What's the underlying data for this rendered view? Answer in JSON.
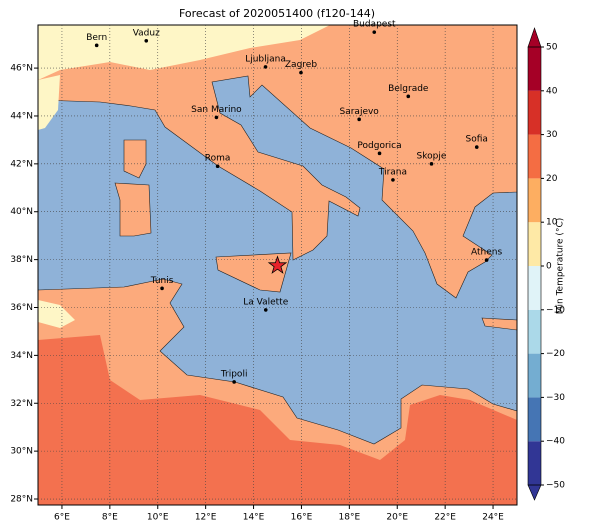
{
  "map": {
    "title": "Forecast of 2020051400 (f120-144)",
    "xlim": [
      5,
      25
    ],
    "ylim": [
      27.75,
      47.8
    ],
    "xticks": [
      {
        "value": 6,
        "label": "6°E"
      },
      {
        "value": 8,
        "label": "8°E"
      },
      {
        "value": 10,
        "label": "10°E"
      },
      {
        "value": 12,
        "label": "12°E"
      },
      {
        "value": 14,
        "label": "14°E"
      },
      {
        "value": 16,
        "label": "16°E"
      },
      {
        "value": 18,
        "label": "18°E"
      },
      {
        "value": 20,
        "label": "20°E"
      },
      {
        "value": 22,
        "label": "22°E"
      },
      {
        "value": 24,
        "label": "24°E"
      }
    ],
    "yticks": [
      {
        "value": 28,
        "label": "28°N"
      },
      {
        "value": 30,
        "label": "30°N"
      },
      {
        "value": 32,
        "label": "32°N"
      },
      {
        "value": 34,
        "label": "34°N"
      },
      {
        "value": 36,
        "label": "36°N"
      },
      {
        "value": 38,
        "label": "38°N"
      },
      {
        "value": 40,
        "label": "40°N"
      },
      {
        "value": 42,
        "label": "42°N"
      },
      {
        "value": 44,
        "label": "44°N"
      },
      {
        "value": 46,
        "label": "46°N"
      }
    ],
    "grid": true,
    "cities": [
      {
        "name": "Bern",
        "lon": 7.45,
        "lat": 46.95
      },
      {
        "name": "Vaduz",
        "lon": 9.52,
        "lat": 47.14
      },
      {
        "name": "Budapest",
        "lon": 19.04,
        "lat": 47.5
      },
      {
        "name": "Ljubljana",
        "lon": 14.5,
        "lat": 46.05
      },
      {
        "name": "Zagreb",
        "lon": 15.98,
        "lat": 45.81
      },
      {
        "name": "Belgrade",
        "lon": 20.46,
        "lat": 44.82
      },
      {
        "name": "San Marino",
        "lon": 12.45,
        "lat": 43.94
      },
      {
        "name": "Sarajevo",
        "lon": 18.41,
        "lat": 43.86
      },
      {
        "name": "Sofia",
        "lon": 23.32,
        "lat": 42.7
      },
      {
        "name": "Podgorica",
        "lon": 19.26,
        "lat": 42.44
      },
      {
        "name": "Skopje",
        "lon": 21.43,
        "lat": 42.0
      },
      {
        "name": "Roma",
        "lon": 12.5,
        "lat": 41.9
      },
      {
        "name": "Tirana",
        "lon": 19.82,
        "lat": 41.33
      },
      {
        "name": "Athens",
        "lon": 23.73,
        "lat": 37.98
      },
      {
        "name": "Tunis",
        "lon": 10.18,
        "lat": 36.8
      },
      {
        "name": "La Valette",
        "lon": 14.51,
        "lat": 35.9
      },
      {
        "name": "Tripoli",
        "lon": 13.19,
        "lat": 32.89
      }
    ],
    "marker": {
      "lon": 15.0,
      "lat": 37.75,
      "color": "#e8222a"
    },
    "colorbar": {
      "label": "Min Temperature (°C)",
      "lim": [
        -50,
        50
      ],
      "ticks": [
        50,
        40,
        30,
        20,
        10,
        0,
        {
          "value": -10,
          "label": "−10"
        },
        {
          "value": -20,
          "label": "−20"
        },
        {
          "value": -30,
          "label": "−30"
        },
        {
          "value": -40,
          "label": "−40"
        },
        {
          "value": -50,
          "label": "−50"
        }
      ],
      "colors": [
        "#313695",
        "#4575b4",
        "#74add1",
        "#abd9e9",
        "#e0f3f8",
        "#fee9a6",
        "#fdae61",
        "#f46d43",
        "#d73027",
        "#a50026"
      ]
    }
  }
}
